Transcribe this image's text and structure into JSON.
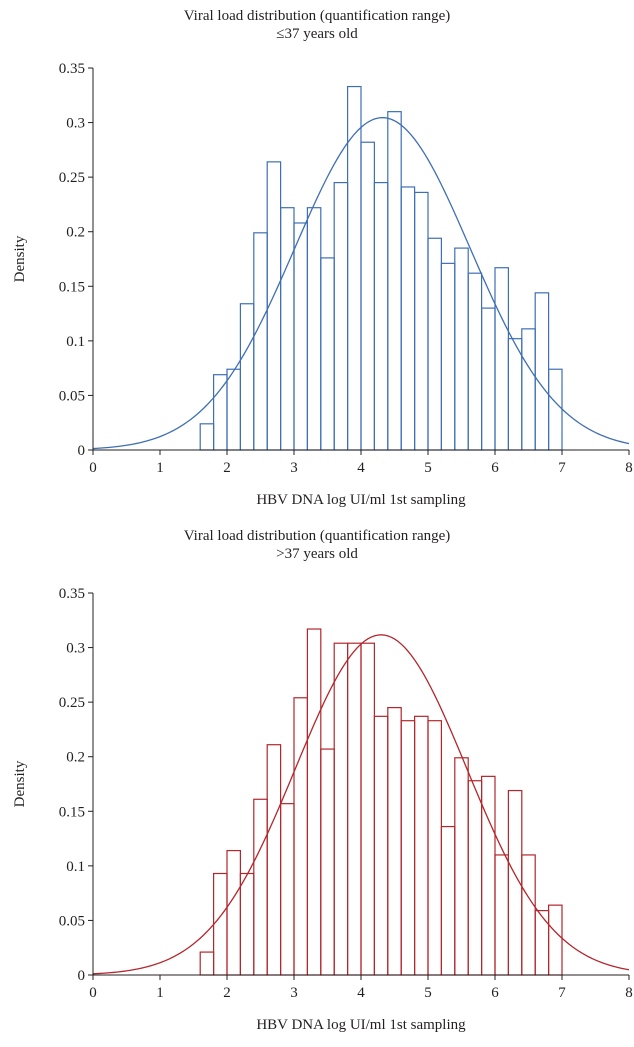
{
  "chart_data": [
    {
      "type": "bar",
      "title": "Viral load distribution (quantification range)",
      "subtitle": "≤37 years old",
      "xlabel": "HBV DNA log UI/ml 1st sampling",
      "ylabel": "Density",
      "xlim": [
        0,
        8
      ],
      "ylim": [
        0,
        0.35
      ],
      "x_ticks": [
        "0",
        "1",
        "2",
        "3",
        "4",
        "5",
        "6",
        "7",
        "8"
      ],
      "y_ticks": [
        "0",
        "0.05",
        "0.1",
        "0.15",
        "0.2",
        "0.25",
        "0.3",
        "0.35"
      ],
      "grid": false,
      "color": "#3e6fb5",
      "bin_width": 0.2,
      "bins_start": [
        1.6,
        1.8,
        2.0,
        2.2,
        2.4,
        2.6,
        2.8,
        3.0,
        3.2,
        3.4,
        3.6,
        3.8,
        4.0,
        4.2,
        4.4,
        4.6,
        4.8,
        5.0,
        5.2,
        5.4,
        5.6,
        5.8,
        6.0,
        6.2,
        6.4,
        6.6,
        6.8,
        7.0
      ],
      "values": [
        0.024,
        0.069,
        0.074,
        0.134,
        0.199,
        0.264,
        0.222,
        0.208,
        0.222,
        0.176,
        0.245,
        0.333,
        0.282,
        0.245,
        0.31,
        0.241,
        0.236,
        0.194,
        0.171,
        0.185,
        0.162,
        0.13,
        0.167,
        0.102,
        0.111,
        0.144,
        0.074,
        0.0
      ],
      "series": [
        {
          "type": "normal-fit-curve",
          "mean": 4.32,
          "sd": 1.31
        }
      ]
    },
    {
      "type": "bar",
      "title": "Viral load distribution (quantification range)",
      "subtitle": ">37 years old",
      "xlabel": "HBV DNA log UI/ml 1st sampling",
      "ylabel": "Density",
      "xlim": [
        0,
        8
      ],
      "ylim": [
        0,
        0.35
      ],
      "x_ticks": [
        "0",
        "1",
        "2",
        "3",
        "4",
        "5",
        "6",
        "7",
        "8"
      ],
      "y_ticks": [
        "0",
        "0.05",
        "0.1",
        "0.15",
        "0.2",
        "0.25",
        "0.3",
        "0.35"
      ],
      "grid": false,
      "color": "#b3262b",
      "bin_width": 0.2,
      "bins_start": [
        1.6,
        1.8,
        2.0,
        2.2,
        2.4,
        2.6,
        2.8,
        3.0,
        3.2,
        3.4,
        3.6,
        3.8,
        4.0,
        4.2,
        4.4,
        4.6,
        4.8,
        5.0,
        5.2,
        5.4,
        5.6,
        5.8,
        6.0,
        6.2,
        6.4,
        6.6,
        6.8,
        7.0
      ],
      "values": [
        0.021,
        0.093,
        0.114,
        0.093,
        0.161,
        0.211,
        0.157,
        0.254,
        0.317,
        0.207,
        0.304,
        0.304,
        0.304,
        0.237,
        0.245,
        0.233,
        0.237,
        0.233,
        0.136,
        0.199,
        0.178,
        0.182,
        0.11,
        0.169,
        0.11,
        0.059,
        0.064,
        0.0
      ],
      "series": [
        {
          "type": "normal-fit-curve",
          "mean": 4.3,
          "sd": 1.28
        }
      ]
    }
  ]
}
